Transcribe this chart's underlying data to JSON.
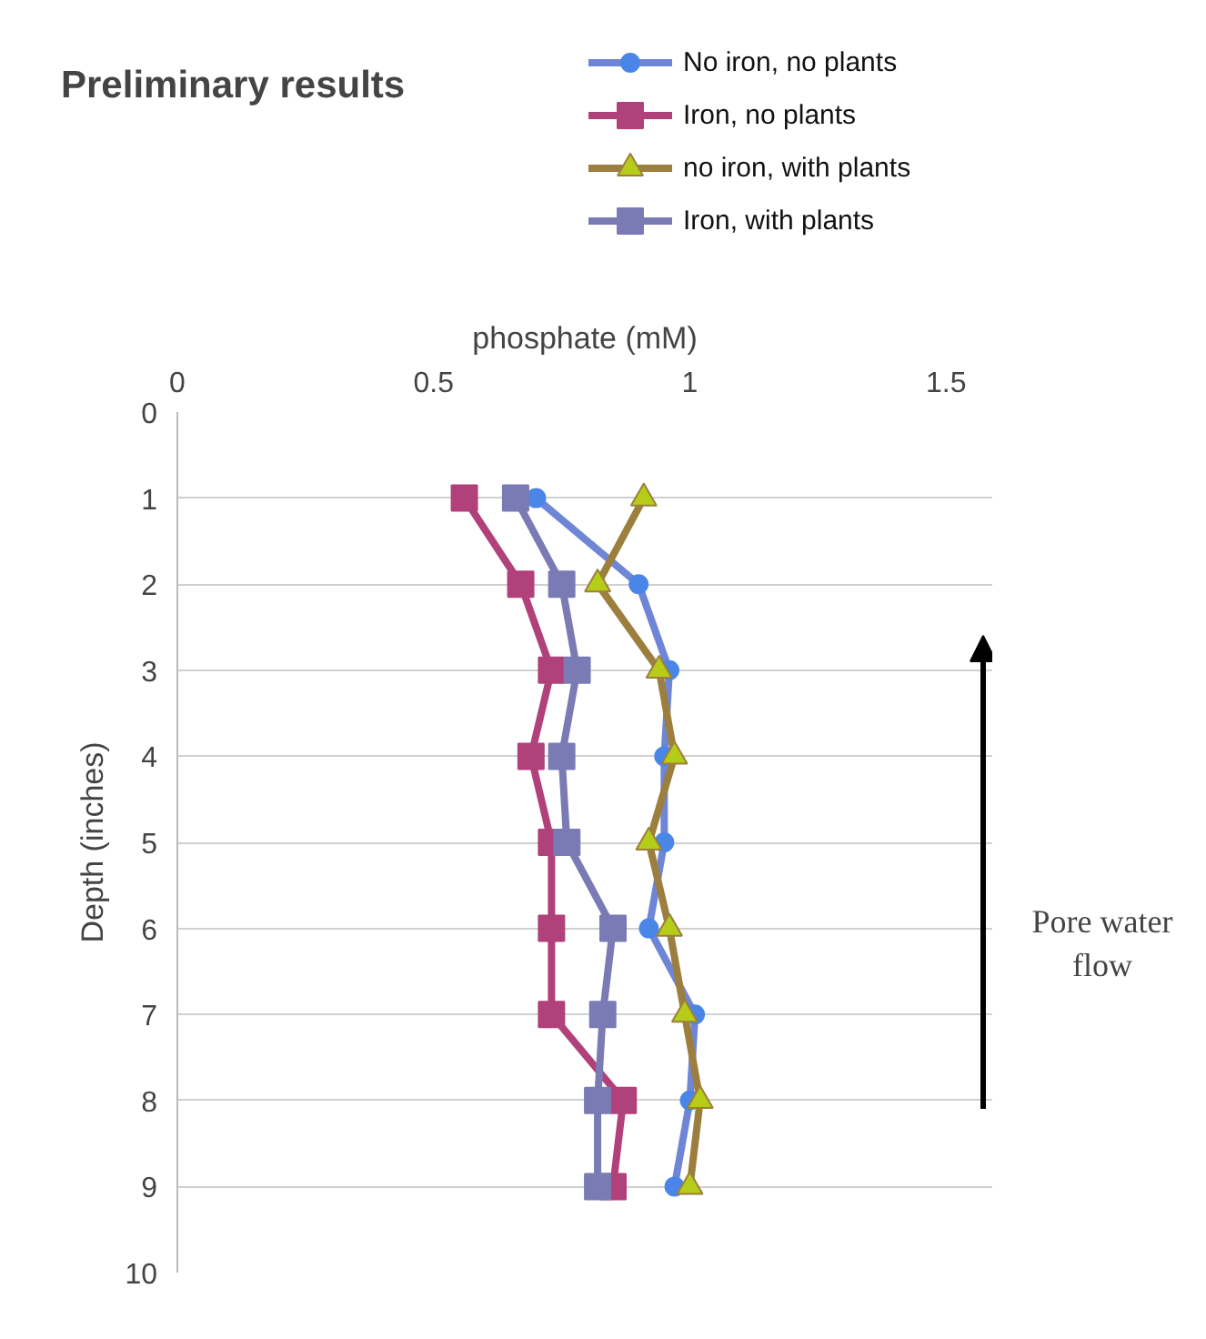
{
  "chart_data": {
    "type": "line",
    "title": "Preliminary results",
    "xlabel": "phosphate (mM)",
    "ylabel": "Depth (inches)",
    "orientation": "horizontal",
    "x": [
      1,
      2,
      3,
      4,
      5,
      6,
      7,
      8,
      9
    ],
    "series": [
      {
        "name": "No iron, no plants",
        "color": "#6f86d6",
        "marker": "circle",
        "values": [
          0.7,
          0.9,
          0.96,
          0.95,
          0.95,
          0.92,
          1.01,
          1.0,
          0.97
        ]
      },
      {
        "name": "Iron, no plants",
        "color": "#b0417a",
        "marker": "square",
        "values": [
          0.56,
          0.67,
          0.73,
          0.69,
          0.73,
          0.73,
          0.73,
          0.87,
          0.85
        ]
      },
      {
        "name": "no iron, with plants",
        "color": "#9c7f3f",
        "marker": "triangle",
        "values": [
          0.91,
          0.82,
          0.94,
          0.97,
          0.92,
          0.96,
          0.99,
          1.02,
          1.0
        ]
      },
      {
        "name": "Iron, with plants",
        "color": "#7a7bb5",
        "marker": "square",
        "values": [
          0.66,
          0.75,
          0.78,
          0.75,
          0.76,
          0.85,
          0.83,
          0.82,
          0.82
        ]
      }
    ],
    "xlim": [
      0,
      1.59
    ],
    "xticks": [
      0,
      0.5,
      1,
      1.5
    ],
    "ylim": [
      10,
      0
    ],
    "yticks": [
      0,
      1,
      2,
      3,
      4,
      5,
      6,
      7,
      8,
      9,
      10
    ],
    "grid": "y",
    "legend": "top right",
    "line_style": "solid",
    "annotations": [
      "Pore water flow"
    ]
  }
}
